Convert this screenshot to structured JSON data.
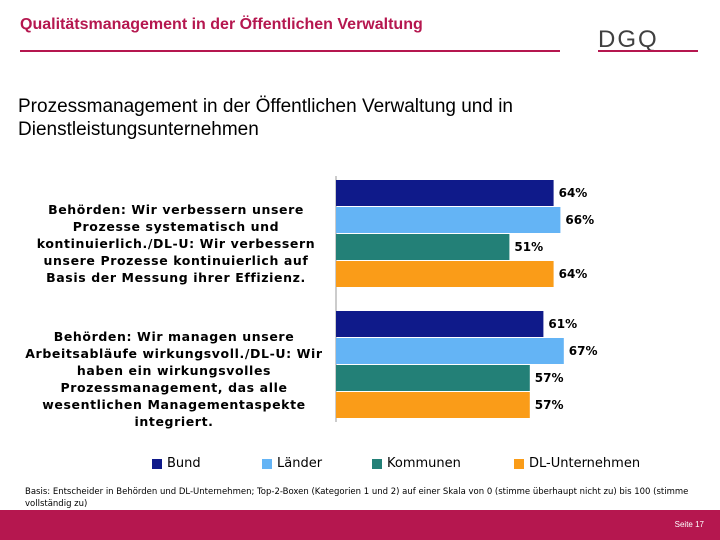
{
  "header": {
    "title": "Qualitätsmanagement in der Öffentlichen Verwaltung",
    "logo": "DGQ"
  },
  "slide": {
    "subtitle": "Prozessmanagement in der Öffentlichen Verwaltung und in Dienstleistungsunternehmen",
    "footnote": "Basis: Entscheider in Behörden und DL-Unternehmen; Top-2-Boxen (Kategorien 1 und 2) auf einer Skala von 0 (stimme überhaupt nicht zu) bis 100 (stimme vollständig zu)",
    "page": "Seite 17"
  },
  "colors": {
    "accent": "#b5174f",
    "Bund": "#0f1a8a",
    "Länder": "#64b4f5",
    "Kommunen": "#238077",
    "DL-Unternehmen": "#fa9c18"
  },
  "chart_data": {
    "type": "bar",
    "orientation": "horizontal",
    "categories": [
      "Behörden: Wir verbessern unsere Prozesse systematisch und kontinuierlich./DL-U: Wir verbessern unsere Prozesse kontinuierlich auf Basis der Messung ihrer Effizienz.",
      "Behörden: Wir managen unsere Arbeitsabläufe wirkungsvoll./DL-U: Wir haben ein wirkungsvolles Prozessmanagement, das alle wesentlichen Managementaspekte integriert."
    ],
    "series": [
      {
        "name": "Bund",
        "values": [
          64,
          61
        ]
      },
      {
        "name": "Länder",
        "values": [
          66,
          67
        ]
      },
      {
        "name": "Kommunen",
        "values": [
          51,
          57
        ]
      },
      {
        "name": "DL-Unternehmen",
        "values": [
          64,
          57
        ]
      }
    ],
    "value_suffix": "%",
    "xlim": [
      0,
      100
    ],
    "legend": "bottom"
  }
}
